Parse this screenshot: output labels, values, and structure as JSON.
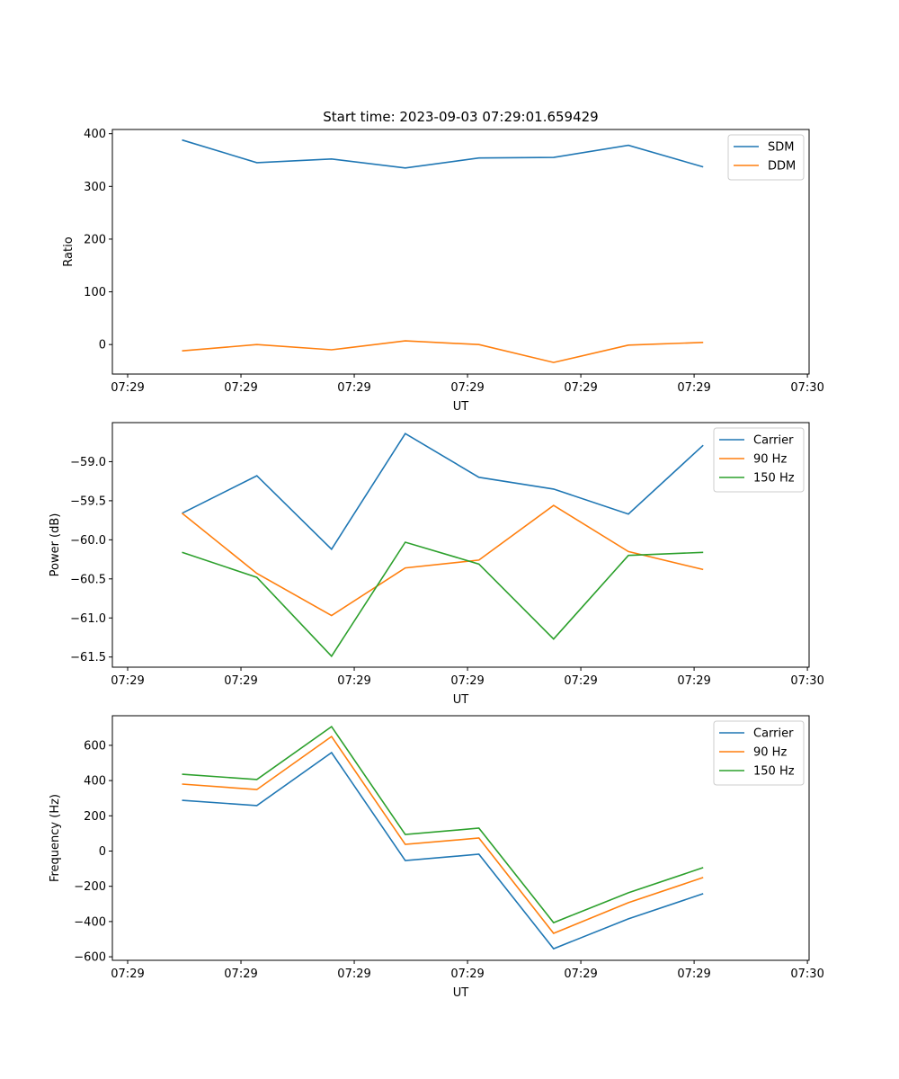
{
  "chart_data": [
    {
      "type": "line",
      "title": "Start time: 2023-09-03 07:29:01.659429",
      "xlabel": "UT",
      "ylabel": "Ratio",
      "x_units": "seconds after 07:29:00",
      "x": [
        4.8,
        11.4,
        18.0,
        24.5,
        31.0,
        37.6,
        44.2,
        50.8
      ],
      "xlim": [
        -1.35,
        60.15
      ],
      "xticks": [
        0,
        10,
        20,
        30,
        40,
        50,
        60
      ],
      "xtick_labels": [
        "07:29",
        "07:29",
        "07:29",
        "07:29",
        "07:29",
        "07:29",
        "07:30"
      ],
      "ylim": [
        -56,
        408
      ],
      "yticks": [
        0,
        100,
        200,
        300,
        400
      ],
      "ytick_labels": [
        "0",
        "100",
        "200",
        "300",
        "400"
      ],
      "legend": "top-right",
      "series": [
        {
          "name": "SDM",
          "color": "#1f77b4",
          "values": [
            388,
            345,
            352,
            335,
            354,
            355,
            378,
            337
          ]
        },
        {
          "name": "DDM",
          "color": "#ff7f0e",
          "values": [
            -12,
            0,
            -10,
            7,
            0,
            -34,
            -1,
            4
          ]
        }
      ]
    },
    {
      "type": "line",
      "title": "",
      "xlabel": "UT",
      "ylabel": "Power (dB)",
      "x_units": "seconds after 07:29:00",
      "x": [
        4.8,
        11.4,
        18.0,
        24.5,
        31.0,
        37.6,
        44.2,
        50.8
      ],
      "xlim": [
        -1.35,
        60.15
      ],
      "xticks": [
        0,
        10,
        20,
        30,
        40,
        50,
        60
      ],
      "xtick_labels": [
        "07:29",
        "07:29",
        "07:29",
        "07:29",
        "07:29",
        "07:29",
        "07:30"
      ],
      "ylim": [
        -61.63,
        -58.5
      ],
      "yticks": [
        -61.5,
        -61.0,
        -60.5,
        -60.0,
        -59.5,
        -59.0
      ],
      "ytick_labels": [
        "−61.5",
        "−61.0",
        "−60.5",
        "−60.0",
        "−59.5",
        "−59.0"
      ],
      "legend": "top-right",
      "series": [
        {
          "name": "Carrier",
          "color": "#1f77b4",
          "values": [
            -59.66,
            -59.18,
            -60.12,
            -58.64,
            -59.2,
            -59.35,
            -59.67,
            -58.79
          ]
        },
        {
          "name": "90 Hz",
          "color": "#ff7f0e",
          "values": [
            -59.66,
            -60.43,
            -60.97,
            -60.36,
            -60.26,
            -59.56,
            -60.15,
            -60.38
          ]
        },
        {
          "name": "150 Hz",
          "color": "#2ca02c",
          "values": [
            -60.16,
            -60.48,
            -61.49,
            -60.03,
            -60.31,
            -61.27,
            -60.2,
            -60.16
          ]
        }
      ]
    },
    {
      "type": "line",
      "title": "",
      "xlabel": "UT",
      "ylabel": "Frequency (Hz)",
      "x_units": "seconds after 07:29:00",
      "x": [
        4.8,
        11.4,
        18.0,
        24.5,
        31.0,
        37.6,
        44.2,
        50.8
      ],
      "xlim": [
        -1.35,
        60.15
      ],
      "xticks": [
        0,
        10,
        20,
        30,
        40,
        50,
        60
      ],
      "xtick_labels": [
        "07:29",
        "07:29",
        "07:29",
        "07:29",
        "07:29",
        "07:29",
        "07:30"
      ],
      "ylim": [
        -620,
        768
      ],
      "yticks": [
        -600,
        -400,
        -200,
        0,
        200,
        400,
        600
      ],
      "ytick_labels": [
        "−600",
        "−400",
        "−200",
        "0",
        "200",
        "400",
        "600"
      ],
      "legend": "top-right",
      "series": [
        {
          "name": "Carrier",
          "color": "#1f77b4",
          "values": [
            288,
            258,
            559,
            -54,
            -18,
            -554,
            -385,
            -242
          ]
        },
        {
          "name": "90 Hz",
          "color": "#ff7f0e",
          "values": [
            380,
            349,
            650,
            38,
            74,
            -467,
            -293,
            -150
          ]
        },
        {
          "name": "150 Hz",
          "color": "#2ca02c",
          "values": [
            436,
            406,
            706,
            94,
            130,
            -406,
            -237,
            -94
          ]
        }
      ]
    }
  ]
}
